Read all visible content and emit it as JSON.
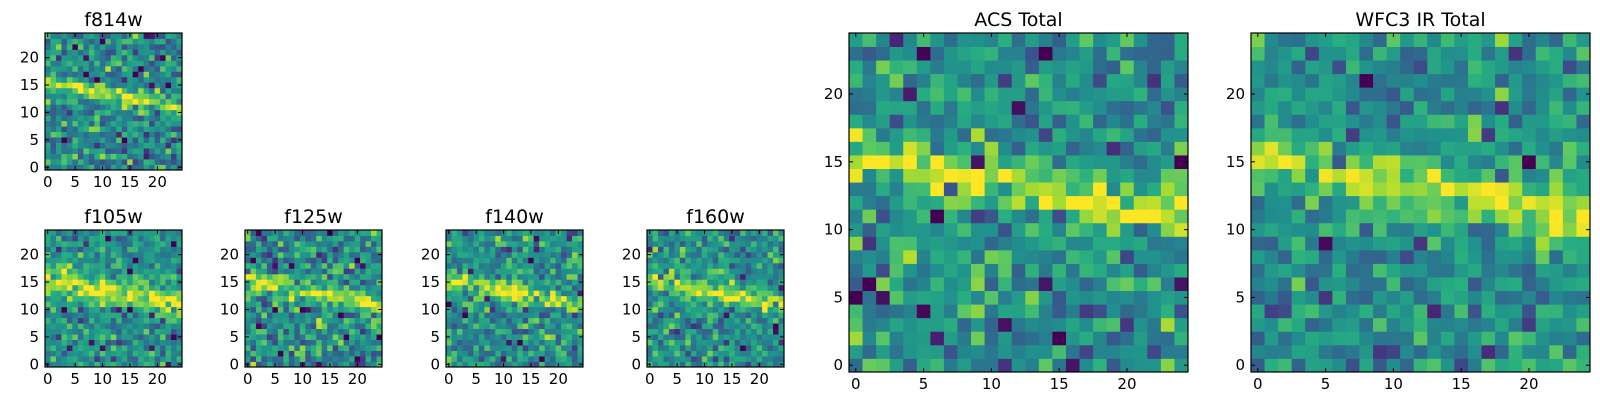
{
  "chart_data": [
    {
      "type": "heatmap",
      "title": "f814w",
      "grid": [
        25,
        25
      ],
      "xticks": [
        0,
        5,
        10,
        15,
        20
      ],
      "yticks": [
        0,
        5,
        10,
        15,
        20
      ],
      "xlim": [
        -0.5,
        24.5
      ],
      "ylim": [
        -0.5,
        24.5
      ],
      "colormap": "viridis",
      "feature": "bright diagonal streak from about (0,15) to (24,11)",
      "seed": 11,
      "noise": 0.36,
      "streak_width": 1.3
    },
    {
      "type": "heatmap",
      "title": "f105w",
      "grid": [
        25,
        25
      ],
      "xticks": [
        0,
        5,
        10,
        15,
        20
      ],
      "yticks": [
        0,
        5,
        10,
        15,
        20
      ],
      "xlim": [
        -0.5,
        24.5
      ],
      "ylim": [
        -0.5,
        24.5
      ],
      "colormap": "viridis",
      "feature": "broad bright band near y 12-16",
      "seed": 23,
      "noise": 0.3,
      "streak_width": 2.4
    },
    {
      "type": "heatmap",
      "title": "f125w",
      "grid": [
        25,
        25
      ],
      "xticks": [
        0,
        5,
        10,
        15,
        20
      ],
      "yticks": [
        0,
        5,
        10,
        15,
        20
      ],
      "xlim": [
        -0.5,
        24.5
      ],
      "ylim": [
        -0.5,
        24.5
      ],
      "colormap": "viridis",
      "feature": "faint diagonal streak",
      "seed": 37,
      "noise": 0.4,
      "streak_width": 1.7
    },
    {
      "type": "heatmap",
      "title": "f140w",
      "grid": [
        25,
        25
      ],
      "xticks": [
        0,
        5,
        10,
        15,
        20
      ],
      "yticks": [
        0,
        5,
        10,
        15,
        20
      ],
      "xlim": [
        -0.5,
        24.5
      ],
      "ylim": [
        -0.5,
        24.5
      ],
      "colormap": "viridis",
      "feature": "bright diagonal streak",
      "seed": 41,
      "noise": 0.36,
      "streak_width": 1.6
    },
    {
      "type": "heatmap",
      "title": "f160w",
      "grid": [
        25,
        25
      ],
      "xticks": [
        0,
        5,
        10,
        15,
        20
      ],
      "yticks": [
        0,
        5,
        10,
        15,
        20
      ],
      "xlim": [
        -0.5,
        24.5
      ],
      "ylim": [
        -0.5,
        24.5
      ],
      "colormap": "viridis",
      "feature": "bright diagonal streak",
      "seed": 53,
      "noise": 0.34,
      "streak_width": 1.6
    },
    {
      "type": "heatmap",
      "title": "ACS Total",
      "grid": [
        25,
        25
      ],
      "xticks": [
        0,
        5,
        10,
        15,
        20
      ],
      "yticks": [
        0,
        5,
        10,
        15,
        20
      ],
      "xlim": [
        -0.5,
        24.5
      ],
      "ylim": [
        -0.5,
        24.5
      ],
      "colormap": "viridis",
      "feature": "bright diagonal streak from about (1,16) to (23,11)",
      "seed": 67,
      "noise": 0.34,
      "streak_width": 1.5
    },
    {
      "type": "heatmap",
      "title": "WFC3 IR Total",
      "grid": [
        25,
        25
      ],
      "xticks": [
        0,
        5,
        10,
        15,
        20
      ],
      "yticks": [
        0,
        5,
        10,
        15,
        20
      ],
      "xlim": [
        -0.5,
        24.5
      ],
      "ylim": [
        -0.5,
        24.5
      ],
      "colormap": "viridis",
      "feature": "bright diagonal band from about (0,16) to (24,11)",
      "seed": 79,
      "noise": 0.32,
      "streak_width": 1.9
    }
  ],
  "colors": {
    "viridis_dark": "#440154",
    "viridis_mid": "#21918c",
    "viridis_bright": "#fde725",
    "axis": "#000000"
  }
}
